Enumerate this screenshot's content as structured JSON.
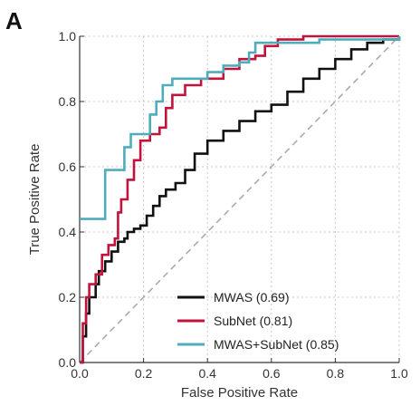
{
  "panel_label": "A",
  "chart_data": {
    "type": "line",
    "xlabel": "False Positive Rate",
    "ylabel": "True Positive Rate",
    "xlim": [
      0,
      1
    ],
    "ylim": [
      0,
      1
    ],
    "xticks": [
      "0.0",
      "0.2",
      "0.4",
      "0.6",
      "0.8",
      "1.0"
    ],
    "yticks": [
      "0.0",
      "0.2",
      "0.4",
      "0.6",
      "0.8",
      "1.0"
    ],
    "grid": true,
    "legend_position": "bottom-right",
    "diagonal_reference": true,
    "series": [
      {
        "name": "MWAS (0.69)",
        "color": "#111111",
        "points": [
          [
            0,
            0
          ],
          [
            0.01,
            0.08
          ],
          [
            0.02,
            0.15
          ],
          [
            0.03,
            0.2
          ],
          [
            0.05,
            0.24
          ],
          [
            0.06,
            0.28
          ],
          [
            0.08,
            0.31
          ],
          [
            0.1,
            0.34
          ],
          [
            0.12,
            0.37
          ],
          [
            0.14,
            0.38
          ],
          [
            0.15,
            0.4
          ],
          [
            0.17,
            0.41
          ],
          [
            0.19,
            0.42
          ],
          [
            0.21,
            0.45
          ],
          [
            0.23,
            0.48
          ],
          [
            0.25,
            0.51
          ],
          [
            0.27,
            0.53
          ],
          [
            0.3,
            0.55
          ],
          [
            0.33,
            0.59
          ],
          [
            0.36,
            0.64
          ],
          [
            0.4,
            0.68
          ],
          [
            0.45,
            0.71
          ],
          [
            0.5,
            0.74
          ],
          [
            0.55,
            0.77
          ],
          [
            0.6,
            0.79
          ],
          [
            0.65,
            0.83
          ],
          [
            0.7,
            0.87
          ],
          [
            0.75,
            0.9
          ],
          [
            0.8,
            0.93
          ],
          [
            0.85,
            0.96
          ],
          [
            0.9,
            0.98
          ],
          [
            0.95,
            0.99
          ],
          [
            1,
            1
          ]
        ]
      },
      {
        "name": "SubNet (0.81)",
        "color": "#c0143c",
        "points": [
          [
            0,
            0
          ],
          [
            0.01,
            0.12
          ],
          [
            0.02,
            0.2
          ],
          [
            0.03,
            0.24
          ],
          [
            0.05,
            0.27
          ],
          [
            0.07,
            0.33
          ],
          [
            0.09,
            0.36
          ],
          [
            0.11,
            0.38
          ],
          [
            0.12,
            0.46
          ],
          [
            0.13,
            0.5
          ],
          [
            0.15,
            0.56
          ],
          [
            0.17,
            0.62
          ],
          [
            0.19,
            0.68
          ],
          [
            0.22,
            0.7
          ],
          [
            0.25,
            0.72
          ],
          [
            0.27,
            0.78
          ],
          [
            0.29,
            0.82
          ],
          [
            0.33,
            0.85
          ],
          [
            0.38,
            0.87
          ],
          [
            0.45,
            0.9
          ],
          [
            0.5,
            0.93
          ],
          [
            0.55,
            0.94
          ],
          [
            0.58,
            0.97
          ],
          [
            0.62,
            0.99
          ],
          [
            0.7,
            1
          ],
          [
            1,
            1
          ]
        ]
      },
      {
        "name": "MWAS+SubNet (0.85)",
        "color": "#4fadbb",
        "points": [
          [
            0,
            0.44
          ],
          [
            0.07,
            0.44
          ],
          [
            0.08,
            0.59
          ],
          [
            0.13,
            0.59
          ],
          [
            0.14,
            0.66
          ],
          [
            0.16,
            0.7
          ],
          [
            0.21,
            0.7
          ],
          [
            0.22,
            0.76
          ],
          [
            0.24,
            0.8
          ],
          [
            0.26,
            0.85
          ],
          [
            0.29,
            0.87
          ],
          [
            0.35,
            0.87
          ],
          [
            0.4,
            0.89
          ],
          [
            0.45,
            0.91
          ],
          [
            0.5,
            0.92
          ],
          [
            0.53,
            0.95
          ],
          [
            0.55,
            0.98
          ],
          [
            0.65,
            0.98
          ],
          [
            0.75,
            0.99
          ],
          [
            0.85,
            0.99
          ],
          [
            0.95,
            0.99
          ],
          [
            1,
            1
          ]
        ]
      }
    ]
  }
}
